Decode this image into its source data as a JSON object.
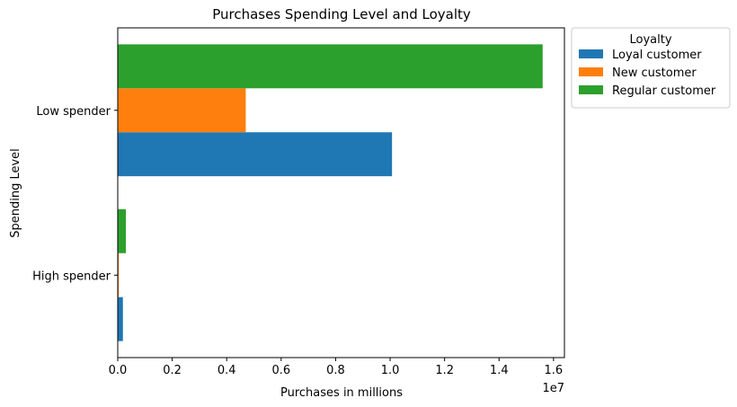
{
  "chart_data": {
    "type": "bar",
    "orientation": "horizontal",
    "title": "Purchases Spending Level and Loyalty",
    "xlabel": "Purchases in millions",
    "ylabel": "Spending Level",
    "x_offset_text": "1e7",
    "xlim": [
      0,
      16400000
    ],
    "xticks": [
      0,
      2000000,
      4000000,
      6000000,
      8000000,
      10000000,
      12000000,
      14000000,
      16000000
    ],
    "xtick_labels": [
      "0.0",
      "0.2",
      "0.4",
      "0.6",
      "0.8",
      "1.0",
      "1.2",
      "1.4",
      "1.6"
    ],
    "categories": [
      "High spender",
      "Low spender"
    ],
    "series": [
      {
        "name": "Loyal customer",
        "color": "#1f77b4",
        "values": [
          190000,
          10070000
        ]
      },
      {
        "name": "New customer",
        "color": "#ff7f0e",
        "values": [
          40000,
          4700000
        ]
      },
      {
        "name": "Regular customer",
        "color": "#2ca02c",
        "values": [
          300000,
          15600000
        ]
      }
    ],
    "legend": {
      "title": "Loyalty",
      "placement": "outside top-right"
    },
    "grid": false
  }
}
